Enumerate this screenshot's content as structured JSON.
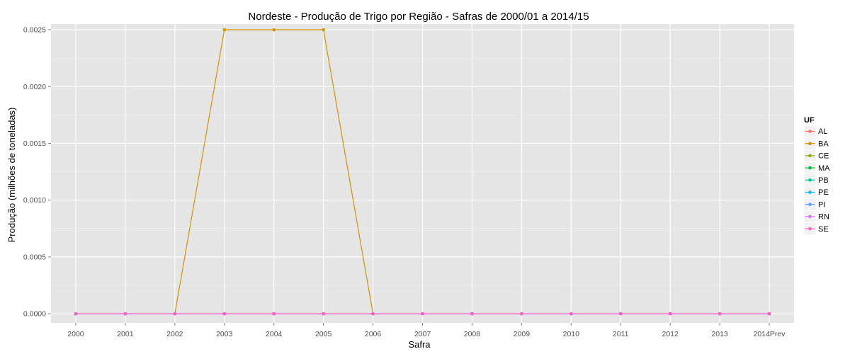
{
  "chart_data": {
    "type": "line",
    "title": "Nordeste  - Produção de Trigo por Região - Safras de 2000/01 a 2014/15",
    "xlabel": "Safra",
    "ylabel": "Produção (milhões de toneladas)",
    "categories": [
      "2000",
      "2001",
      "2002",
      "2003",
      "2004",
      "2005",
      "2006",
      "2007",
      "2008",
      "2009",
      "2010",
      "2011",
      "2012",
      "2013",
      "2014Prev"
    ],
    "ylim": [
      -8e-05,
      0.00255
    ],
    "yticks": [
      "0.0000",
      "0.0005",
      "0.0010",
      "0.0015",
      "0.0020",
      "0.0025"
    ],
    "grid": true,
    "legend": {
      "title": "UF",
      "position": "right"
    },
    "series": [
      {
        "name": "AL",
        "color": "#F8766D",
        "values": [
          0,
          0,
          0,
          0,
          0,
          0,
          0,
          0,
          0,
          0,
          0,
          0,
          0,
          0,
          0
        ]
      },
      {
        "name": "BA",
        "color": "#D39200",
        "values": [
          0,
          0,
          0,
          0.0025,
          0.0025,
          0.0025,
          0,
          0,
          0,
          0,
          0,
          0,
          0,
          0,
          0
        ]
      },
      {
        "name": "CE",
        "color": "#93AA00",
        "values": [
          0,
          0,
          0,
          0,
          0,
          0,
          0,
          0,
          0,
          0,
          0,
          0,
          0,
          0,
          0
        ]
      },
      {
        "name": "MA",
        "color": "#00BA38",
        "values": [
          0,
          0,
          0,
          0,
          0,
          0,
          0,
          0,
          0,
          0,
          0,
          0,
          0,
          0,
          0
        ]
      },
      {
        "name": "PB",
        "color": "#00C19F",
        "values": [
          0,
          0,
          0,
          0,
          0,
          0,
          0,
          0,
          0,
          0,
          0,
          0,
          0,
          0,
          0
        ]
      },
      {
        "name": "PE",
        "color": "#00B9E3",
        "values": [
          0,
          0,
          0,
          0,
          0,
          0,
          0,
          0,
          0,
          0,
          0,
          0,
          0,
          0,
          0
        ]
      },
      {
        "name": "PI",
        "color": "#619CFF",
        "values": [
          0,
          0,
          0,
          0,
          0,
          0,
          0,
          0,
          0,
          0,
          0,
          0,
          0,
          0,
          0
        ]
      },
      {
        "name": "RN",
        "color": "#DB72FB",
        "values": [
          0,
          0,
          0,
          0,
          0,
          0,
          0,
          0,
          0,
          0,
          0,
          0,
          0,
          0,
          0
        ]
      },
      {
        "name": "SE",
        "color": "#FF61C3",
        "values": [
          0,
          0,
          0,
          0,
          0,
          0,
          0,
          0,
          0,
          0,
          0,
          0,
          0,
          0,
          0
        ]
      }
    ]
  }
}
